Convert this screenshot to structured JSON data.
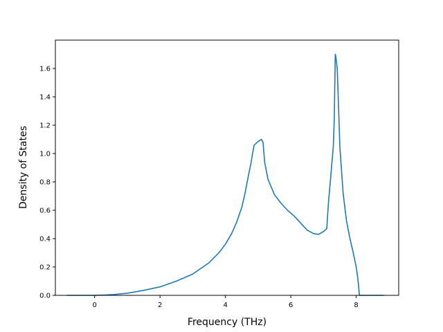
{
  "chart_data": {
    "type": "line",
    "title": "",
    "xlabel": "Frequency (THz)",
    "ylabel": "Density of States",
    "xlim": [
      -1.2,
      9.3
    ],
    "ylim": [
      0.0,
      1.8
    ],
    "xticks": [
      0,
      2,
      4,
      6,
      8
    ],
    "xtick_labels": [
      "0",
      "2",
      "4",
      "6",
      "8"
    ],
    "yticks": [
      0.0,
      0.2,
      0.4,
      0.6,
      0.8,
      1.0,
      1.2,
      1.4,
      1.6
    ],
    "ytick_labels": [
      "0.0",
      "0.2",
      "0.4",
      "0.6",
      "0.8",
      "1.0",
      "1.2",
      "1.4",
      "1.6"
    ],
    "grid": false,
    "color": "#1f77b4",
    "series": [
      {
        "x": [
          -0.85,
          -0.5,
          0.0,
          0.3,
          0.6,
          1.0,
          1.5,
          2.0,
          2.5,
          3.0,
          3.5,
          3.8,
          4.0,
          4.2,
          4.35,
          4.5,
          4.6,
          4.7,
          4.78,
          4.83,
          4.88,
          5.0,
          5.1,
          5.15,
          5.2,
          5.3,
          5.5,
          5.7,
          5.9,
          6.1,
          6.3,
          6.5,
          6.7,
          6.85,
          7.0,
          7.05,
          7.1,
          7.15,
          7.2,
          7.3,
          7.33,
          7.36,
          7.38,
          7.42,
          7.45,
          7.5,
          7.6,
          7.7,
          7.8,
          7.9,
          8.0,
          8.05,
          8.1,
          8.5,
          8.85
        ],
        "y": [
          0.0,
          0.0,
          0.0,
          0.002,
          0.006,
          0.015,
          0.035,
          0.06,
          0.1,
          0.15,
          0.23,
          0.3,
          0.36,
          0.44,
          0.52,
          0.62,
          0.72,
          0.84,
          0.93,
          1.0,
          1.06,
          1.085,
          1.1,
          1.08,
          0.94,
          0.82,
          0.71,
          0.65,
          0.6,
          0.56,
          0.51,
          0.46,
          0.435,
          0.43,
          0.45,
          0.46,
          0.47,
          0.65,
          0.78,
          1.05,
          1.25,
          1.7,
          1.68,
          1.6,
          1.4,
          1.05,
          0.72,
          0.53,
          0.41,
          0.31,
          0.2,
          0.12,
          0.0,
          0.0,
          0.0
        ]
      }
    ]
  }
}
